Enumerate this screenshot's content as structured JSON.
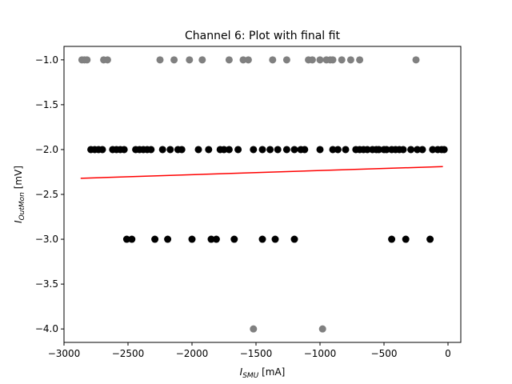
{
  "chart_data": {
    "type": "scatter",
    "title": "Channel 6: Plot with final fit",
    "xlabel": {
      "main": "I",
      "sub": "SMU",
      "unit": " [mA]"
    },
    "ylabel": {
      "main": "I",
      "sub": "OutMon",
      "unit": " [mV]"
    },
    "xlim": [
      -3000,
      100
    ],
    "ylim": [
      -4.15,
      -0.85
    ],
    "xticks": [
      -3000,
      -2500,
      -2000,
      -1500,
      -1000,
      -500,
      0
    ],
    "yticks": [
      -1.0,
      -1.5,
      -2.0,
      -2.5,
      -3.0,
      -3.5,
      -4.0
    ],
    "xtick_labels": [
      "−3000",
      "−2500",
      "−2000",
      "−1500",
      "−1000",
      "−500",
      "0"
    ],
    "ytick_labels": [
      "−1.0",
      "−1.5",
      "−2.0",
      "−2.5",
      "−3.0",
      "−3.5",
      "−4.0"
    ],
    "grid": false,
    "legend": "none",
    "series": [
      {
        "color": "#808080",
        "x": [
          -2860,
          -2840,
          -2820,
          -2690,
          -2660,
          -2250,
          -2140,
          -2020,
          -1920,
          -1710,
          -1600,
          -1560,
          -1370,
          -1260,
          -1090,
          -1060,
          -1000,
          -950,
          -920,
          -900,
          -830,
          -760,
          -690,
          -250,
          -1520,
          -980
        ],
        "y": [
          -1,
          -1,
          -1,
          -1,
          -1,
          -1,
          -1,
          -1,
          -1,
          -1,
          -1,
          -1,
          -1,
          -1,
          -1,
          -1,
          -1,
          -1,
          -1,
          -1,
          -1,
          -1,
          -1,
          -1,
          -4,
          -4
        ]
      },
      {
        "color": "#000000",
        "x": [
          -2790,
          -2760,
          -2730,
          -2700,
          -2620,
          -2590,
          -2560,
          -2530,
          -2440,
          -2410,
          -2380,
          -2350,
          -2320,
          -2230,
          -2170,
          -2110,
          -2080,
          -1950,
          -1870,
          -1780,
          -1750,
          -1710,
          -1640,
          -1520,
          -1450,
          -1390,
          -1330,
          -1260,
          -1200,
          -1150,
          -1120,
          -1000,
          -900,
          -860,
          -800,
          -720,
          -690,
          -660,
          -630,
          -590,
          -560,
          -540,
          -500,
          -480,
          -440,
          -410,
          -380,
          -350,
          -290,
          -240,
          -200,
          -120,
          -80,
          -50,
          -30,
          -2510,
          -2470,
          -2290,
          -2190,
          -2000,
          -1850,
          -1810,
          -1670,
          -1450,
          -1350,
          -1200,
          -440,
          -330,
          -140
        ],
        "y": [
          -2,
          -2,
          -2,
          -2,
          -2,
          -2,
          -2,
          -2,
          -2,
          -2,
          -2,
          -2,
          -2,
          -2,
          -2,
          -2,
          -2,
          -2,
          -2,
          -2,
          -2,
          -2,
          -2,
          -2,
          -2,
          -2,
          -2,
          -2,
          -2,
          -2,
          -2,
          -2,
          -2,
          -2,
          -2,
          -2,
          -2,
          -2,
          -2,
          -2,
          -2,
          -2,
          -2,
          -2,
          -2,
          -2,
          -2,
          -2,
          -2,
          -2,
          -2,
          -2,
          -2,
          -2,
          -2,
          -3,
          -3,
          -3,
          -3,
          -3,
          -3,
          -3,
          -3,
          -3,
          -3,
          -3,
          -3,
          -3,
          -3
        ]
      },
      {
        "type": "line",
        "color": "#ff0000",
        "x": [
          -2870,
          -40
        ],
        "y": [
          -2.32,
          -2.19
        ]
      }
    ]
  }
}
